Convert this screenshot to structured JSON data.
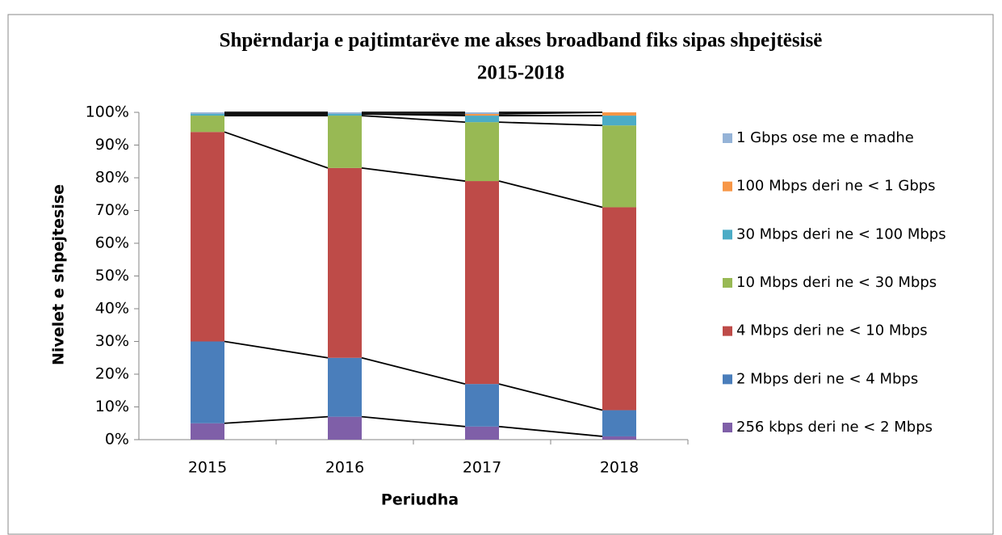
{
  "chart_data": {
    "type": "stacked_bar",
    "title": "Shpërndarja e pajtimtarëve me akses broadband fiks sipas shpejtësisë",
    "subtitle": "2015-2018",
    "x_label": "Periudha",
    "y_label": "Nivelet e shpejtesise",
    "categories": [
      "2015",
      "2016",
      "2017",
      "2018"
    ],
    "series": [
      {
        "name": "256 kbps deri ne < 2 Mbps",
        "color": "#7f5fa8",
        "values": [
          5,
          7,
          4,
          1
        ]
      },
      {
        "name": "2 Mbps deri ne < 4 Mbps",
        "color": "#4a7ebb",
        "values": [
          25,
          18,
          13,
          8
        ]
      },
      {
        "name": "4 Mbps deri ne < 10 Mbps",
        "color": "#be4b48",
        "values": [
          64,
          58,
          62,
          62
        ]
      },
      {
        "name": "10 Mbps deri ne < 30 Mbps",
        "color": "#98b954",
        "values": [
          5,
          16,
          18,
          25
        ]
      },
      {
        "name": "30 Mbps deri ne < 100 Mbps",
        "color": "#4bacc6",
        "values": [
          0.5,
          0.5,
          2,
          3
        ]
      },
      {
        "name": "100 Mbps deri ne < 1 Gbps",
        "color": "#f79646",
        "values": [
          0,
          0,
          0.5,
          1
        ]
      },
      {
        "name": "1 Gbps ose me e madhe",
        "color": "#95b3d7",
        "values": [
          0.5,
          0.5,
          0.5,
          0
        ]
      }
    ],
    "ylim": [
      0,
      100
    ],
    "yticks": [
      {
        "value": 0,
        "label": "0%"
      },
      {
        "value": 10,
        "label": "10%"
      },
      {
        "value": 20,
        "label": "20%"
      },
      {
        "value": 30,
        "label": "30%"
      },
      {
        "value": 40,
        "label": "40%"
      },
      {
        "value": 50,
        "label": "50%"
      },
      {
        "value": 60,
        "label": "60%"
      },
      {
        "value": 70,
        "label": "70%"
      },
      {
        "value": 80,
        "label": "80%"
      },
      {
        "value": 90,
        "label": "90%"
      },
      {
        "value": 100,
        "label": "100%"
      }
    ],
    "legend": "right"
  }
}
